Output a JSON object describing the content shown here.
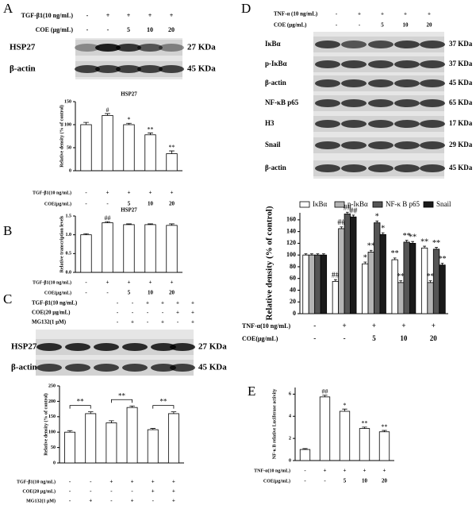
{
  "panels": [
    "A",
    "B",
    "C",
    "D",
    "E"
  ],
  "blots": [
    {
      "conditions": [
        {
          "label": "TGF-β1(10 ng/mL)",
          "values": [
            "-",
            "+",
            "+",
            "+",
            "+"
          ]
        },
        {
          "label": "COE (μg/mL)",
          "values": [
            "-",
            "-",
            "5",
            "10",
            "20"
          ]
        }
      ],
      "bands": [
        {
          "name": "HSP27",
          "size": "27 KDa"
        },
        {
          "name": "β-actin",
          "size": "45 KDa"
        }
      ]
    },
    {
      "conditions": [
        {
          "label": "TGF-β1(10 ng/mL)",
          "values": [
            "-",
            "-",
            "+",
            "+",
            "+",
            "+"
          ]
        },
        {
          "label": "COE(20 μg/mL)",
          "values": [
            "-",
            "-",
            "-",
            "-",
            "+",
            "+"
          ]
        },
        {
          "label": "MG132(1 μM)",
          "values": [
            "-",
            "+",
            "-",
            "+",
            "-",
            "+"
          ]
        }
      ],
      "bands": [
        {
          "name": "HSP27",
          "size": "27 KDa"
        },
        {
          "name": "β-actin",
          "size": "45 KDa"
        }
      ]
    },
    {
      "conditions": [
        {
          "label": "TNF-α (10 ng/mL)",
          "values": [
            "-",
            "+",
            "+",
            "+",
            "+"
          ]
        },
        {
          "label": "COE (μg/mL)",
          "values": [
            "-",
            "-",
            "5",
            "10",
            "20"
          ]
        }
      ],
      "bands": [
        {
          "name": "IκBα",
          "size": "37 KDa"
        },
        {
          "name": "p-IκBα",
          "size": "37 KDa"
        },
        {
          "name": "β-actin",
          "size": "45 KDa"
        },
        {
          "name": "NF-κB p65",
          "size": "65 KDa"
        },
        {
          "name": "H3",
          "size": "17 KDa"
        },
        {
          "name": "Snail",
          "size": "29 KDa"
        },
        {
          "name": "β-actin",
          "size": "45 KDa"
        }
      ]
    }
  ],
  "chart_data": [
    {
      "type": "bar",
      "title": "HSP27",
      "ylabel": "Relative density (% of control)",
      "ylim": [
        0,
        150
      ],
      "yticks": [
        0,
        50,
        100,
        150
      ],
      "color": "#ffffff",
      "values": [
        100,
        120,
        100,
        78,
        37
      ],
      "errors": [
        5,
        4,
        3,
        4,
        6
      ],
      "annotations": [
        null,
        "#",
        "*",
        "**",
        "**"
      ],
      "condition_rows": [
        {
          "label": "TGF-β1(10 ng/mL)",
          "values": [
            "-",
            "+",
            "+",
            "+",
            "+"
          ]
        },
        {
          "label": "COE(μg/mL)",
          "values": [
            "-",
            "-",
            "5",
            "10",
            "20"
          ]
        }
      ]
    },
    {
      "type": "bar",
      "title": "HSP27",
      "ylabel": "Relative transcription levels",
      "ylim": [
        0,
        1.5
      ],
      "yticks": [
        {
          "value": 0,
          "label": "0.0"
        },
        0.5,
        {
          "value": 1,
          "label": "1.0"
        },
        1.5
      ],
      "color": "#ffffff",
      "values": [
        1.0,
        1.32,
        1.27,
        1.27,
        1.25
      ],
      "errors": [
        0.03,
        0.03,
        0.02,
        0.02,
        0.04
      ],
      "annotations": [
        null,
        "##",
        null,
        null,
        null
      ],
      "condition_rows": [
        {
          "label": "TGF-β1(10 ng/mL)",
          "values": [
            "-",
            "+",
            "+",
            "+",
            "+"
          ]
        },
        {
          "label": "COE(μg/mL)",
          "values": [
            "-",
            "-",
            "5",
            "10",
            "20"
          ]
        }
      ]
    },
    {
      "type": "bar",
      "ylabel": "Relative density (% of control)",
      "ylim": [
        0,
        250
      ],
      "yticks": [
        0,
        50,
        100,
        150,
        200,
        250
      ],
      "color": "#ffffff",
      "values": [
        100,
        160,
        130,
        180,
        108,
        160
      ],
      "errors": [
        5,
        6,
        7,
        5,
        4,
        6
      ],
      "brackets": [
        {
          "pair": [
            0,
            1
          ],
          "label": "**"
        },
        {
          "pair": [
            2,
            3
          ],
          "label": "**"
        },
        {
          "pair": [
            4,
            5
          ],
          "label": "**"
        }
      ],
      "condition_rows": [
        {
          "label": "TGF-β1(10 ng/mL)",
          "values": [
            "-",
            "-",
            "+",
            "+",
            "+",
            "+"
          ]
        },
        {
          "label": "COE(20 μg/mL)",
          "values": [
            "-",
            "-",
            "-",
            "-",
            "+",
            "+"
          ]
        },
        {
          "label": "MG132(1 μM)",
          "values": [
            "-",
            "+",
            "-",
            "+",
            "-",
            "+"
          ]
        }
      ]
    },
    {
      "type": "bar",
      "ylabel": "Relative density (% of control)",
      "ylim": [
        0,
        172
      ],
      "yticks": [
        0,
        20,
        40,
        60,
        80,
        100,
        120,
        140,
        160
      ],
      "legend": "top",
      "series": [
        {
          "name": "IκBα",
          "color": "#ffffff",
          "values": [
            100,
            55,
            85,
            92,
            112
          ],
          "errors": [
            2,
            3,
            3,
            3,
            3
          ],
          "annotations": [
            null,
            "##",
            "*",
            "**",
            "**"
          ]
        },
        {
          "name": "p-IκBα",
          "color": "#b4b4b4",
          "values": [
            100,
            145,
            105,
            53,
            53
          ],
          "errors": [
            2,
            3,
            3,
            3,
            3
          ],
          "annotations": [
            null,
            "##",
            "**",
            "**",
            "**"
          ]
        },
        {
          "name": "NF-κ B p65",
          "color": "#555555",
          "values": [
            100,
            170,
            155,
            122,
            110
          ],
          "errors": [
            2,
            3,
            3,
            3,
            3
          ],
          "annotations": [
            null,
            "##",
            "*",
            "**",
            "**"
          ]
        },
        {
          "name": "Snail",
          "color": "#1a1a1a",
          "values": [
            100,
            165,
            135,
            120,
            83
          ],
          "errors": [
            2,
            3,
            3,
            3,
            3
          ],
          "annotations": [
            null,
            "##",
            "*",
            "**",
            "**"
          ]
        }
      ],
      "condition_rows": [
        {
          "label": "TNF-α(10 ng/mL)",
          "values": [
            "-",
            "+",
            "+",
            "+",
            "+"
          ]
        },
        {
          "label": "COE(μg/mL)",
          "values": [
            "-",
            "-",
            "5",
            "10",
            "20"
          ]
        }
      ]
    },
    {
      "type": "bar",
      "ylabel": "NF-κ B relative Luciferase activity",
      "ylim": [
        0,
        6.6
      ],
      "yticks": [
        0,
        2,
        4,
        6
      ],
      "color": "#ffffff",
      "values": [
        1.0,
        5.75,
        4.45,
        2.9,
        2.6
      ],
      "errors": [
        0.08,
        0.15,
        0.2,
        0.12,
        0.12
      ],
      "annotations": [
        null,
        "##",
        "*",
        "**",
        "**"
      ],
      "condition_rows": [
        {
          "label": "TNF-α(10 ng/mL)",
          "values": [
            "-",
            "+",
            "+",
            "+",
            "+"
          ]
        },
        {
          "label": "COE(μg/mL)",
          "values": [
            "-",
            "-",
            "5",
            "10",
            "20"
          ]
        }
      ]
    }
  ]
}
